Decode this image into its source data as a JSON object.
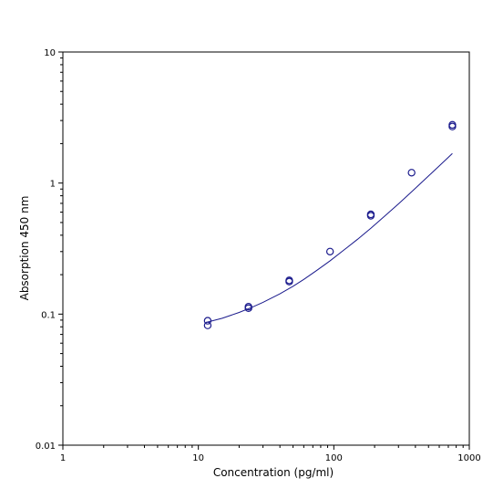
{
  "chart_data": {
    "type": "scatter",
    "xlabel": "Concentration (pg/ml)",
    "ylabel": "Absorption 450 nm",
    "x_scale": "log",
    "y_scale": "log",
    "xlim": [
      1,
      1000
    ],
    "ylim": [
      0.01,
      10
    ],
    "x_ticks": [
      "1",
      "10",
      "100",
      "1000"
    ],
    "y_ticks": [
      "0.01",
      "0.1",
      "1",
      "10"
    ],
    "grid": false,
    "legend": "none",
    "colors": {
      "marker": "#1a1a8c",
      "curve": "#1a1a8c",
      "axis": "#000000"
    },
    "series": [
      {
        "points": [
          {
            "x": 11.72,
            "y": 0.082
          },
          {
            "x": 11.72,
            "y": 0.089
          },
          {
            "x": 23.44,
            "y": 0.111
          },
          {
            "x": 23.44,
            "y": 0.114
          },
          {
            "x": 46.88,
            "y": 0.177
          },
          {
            "x": 46.88,
            "y": 0.181
          },
          {
            "x": 93.75,
            "y": 0.3
          },
          {
            "x": 187.5,
            "y": 0.563
          },
          {
            "x": 187.5,
            "y": 0.577
          },
          {
            "x": 375,
            "y": 1.2
          },
          {
            "x": 750,
            "y": 2.7
          },
          {
            "x": 750,
            "y": 2.78
          }
        ]
      }
    ],
    "fit_curve": {
      "x": [
        11.72,
        15,
        20,
        25,
        30,
        40,
        50,
        60,
        75,
        93.75,
        120,
        150,
        187.5,
        240,
        300,
        375,
        470,
        600,
        750
      ],
      "y": [
        0.087,
        0.093,
        0.103,
        0.113,
        0.123,
        0.143,
        0.163,
        0.184,
        0.216,
        0.255,
        0.311,
        0.373,
        0.452,
        0.565,
        0.694,
        0.858,
        1.067,
        1.351,
        1.68
      ]
    }
  }
}
